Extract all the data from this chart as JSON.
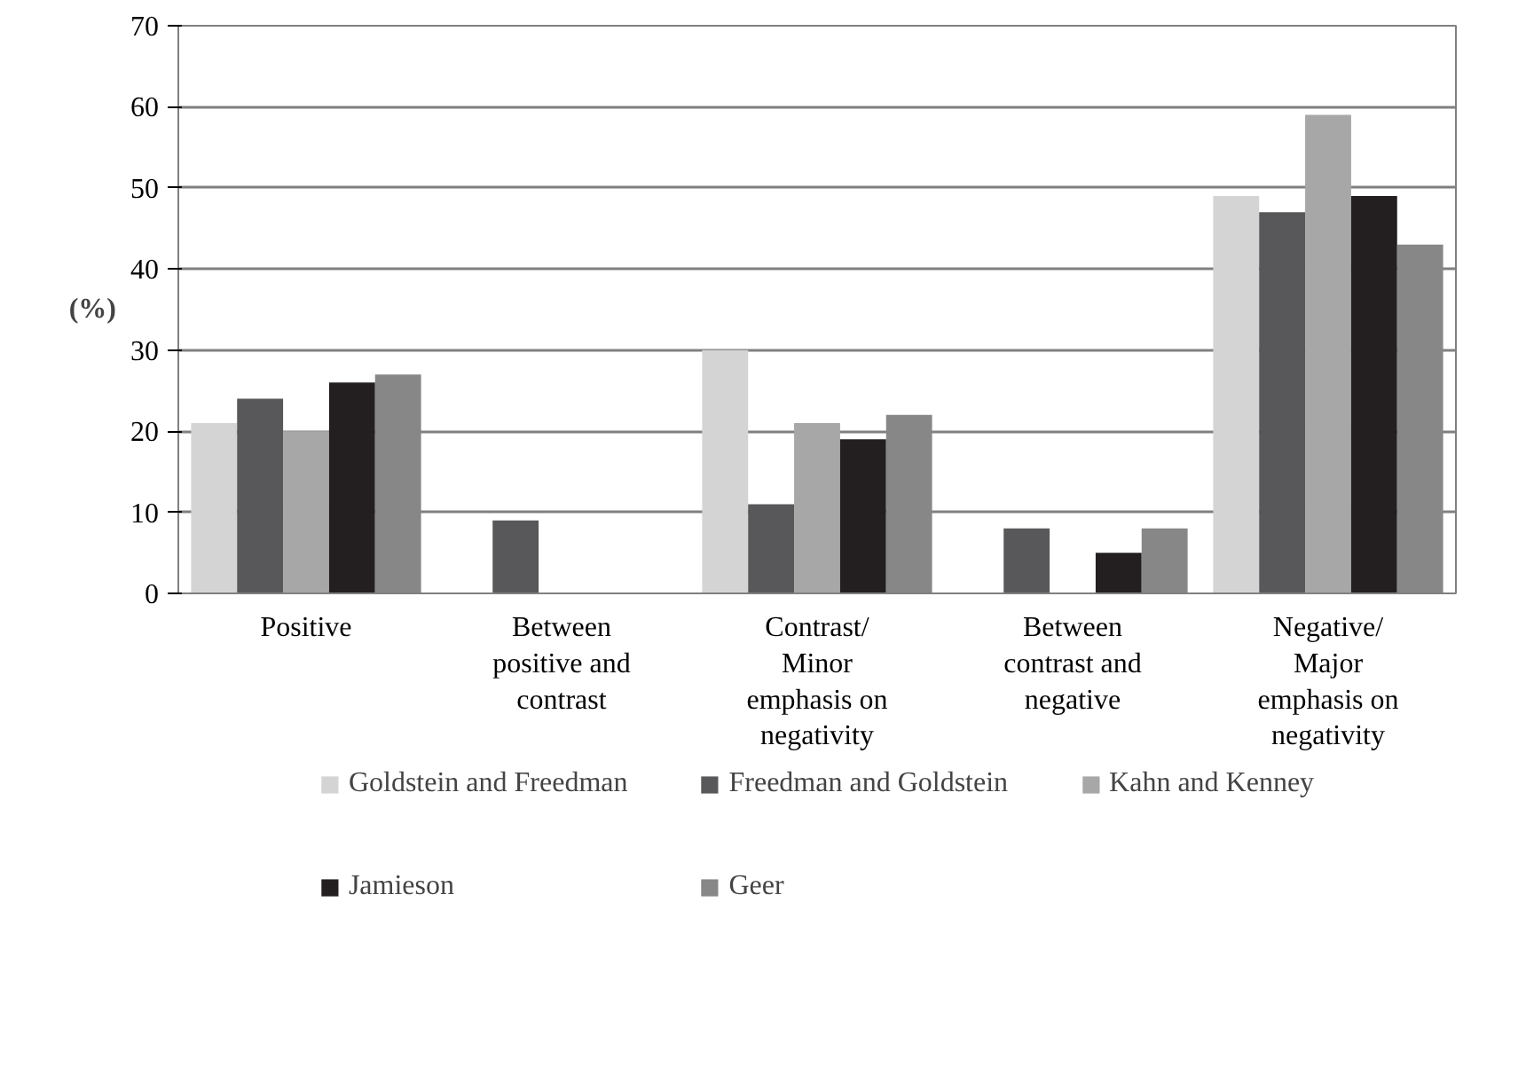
{
  "chart_data": {
    "type": "bar",
    "ylabel": "(%)",
    "categories": [
      "Positive",
      "Between positive and contrast",
      "Contrast/ Minor emphasis on negativity",
      "Between contrast and negative",
      "Negative/ Major emphasis on negativity"
    ],
    "series": [
      {
        "name": "Goldstein and Freedman",
        "color": "#d4d4d4",
        "values": [
          21,
          0,
          30,
          0,
          49
        ]
      },
      {
        "name": "Freedman and Goldstein",
        "color": "#58585a",
        "values": [
          24,
          9,
          11,
          8,
          47
        ]
      },
      {
        "name": "Kahn and Kenney",
        "color": "#a7a7a7",
        "values": [
          20,
          0,
          21,
          0,
          59
        ]
      },
      {
        "name": "Jamieson",
        "color": "#231f20",
        "values": [
          26,
          0,
          19,
          5,
          49
        ]
      },
      {
        "name": "Geer",
        "color": "#878787",
        "values": [
          27,
          0,
          22,
          8,
          43
        ]
      }
    ],
    "ylim": [
      0,
      70
    ],
    "yticks": [
      0,
      10,
      20,
      30,
      40,
      50,
      60,
      70
    ],
    "grid": "y",
    "legend": "bottom"
  }
}
